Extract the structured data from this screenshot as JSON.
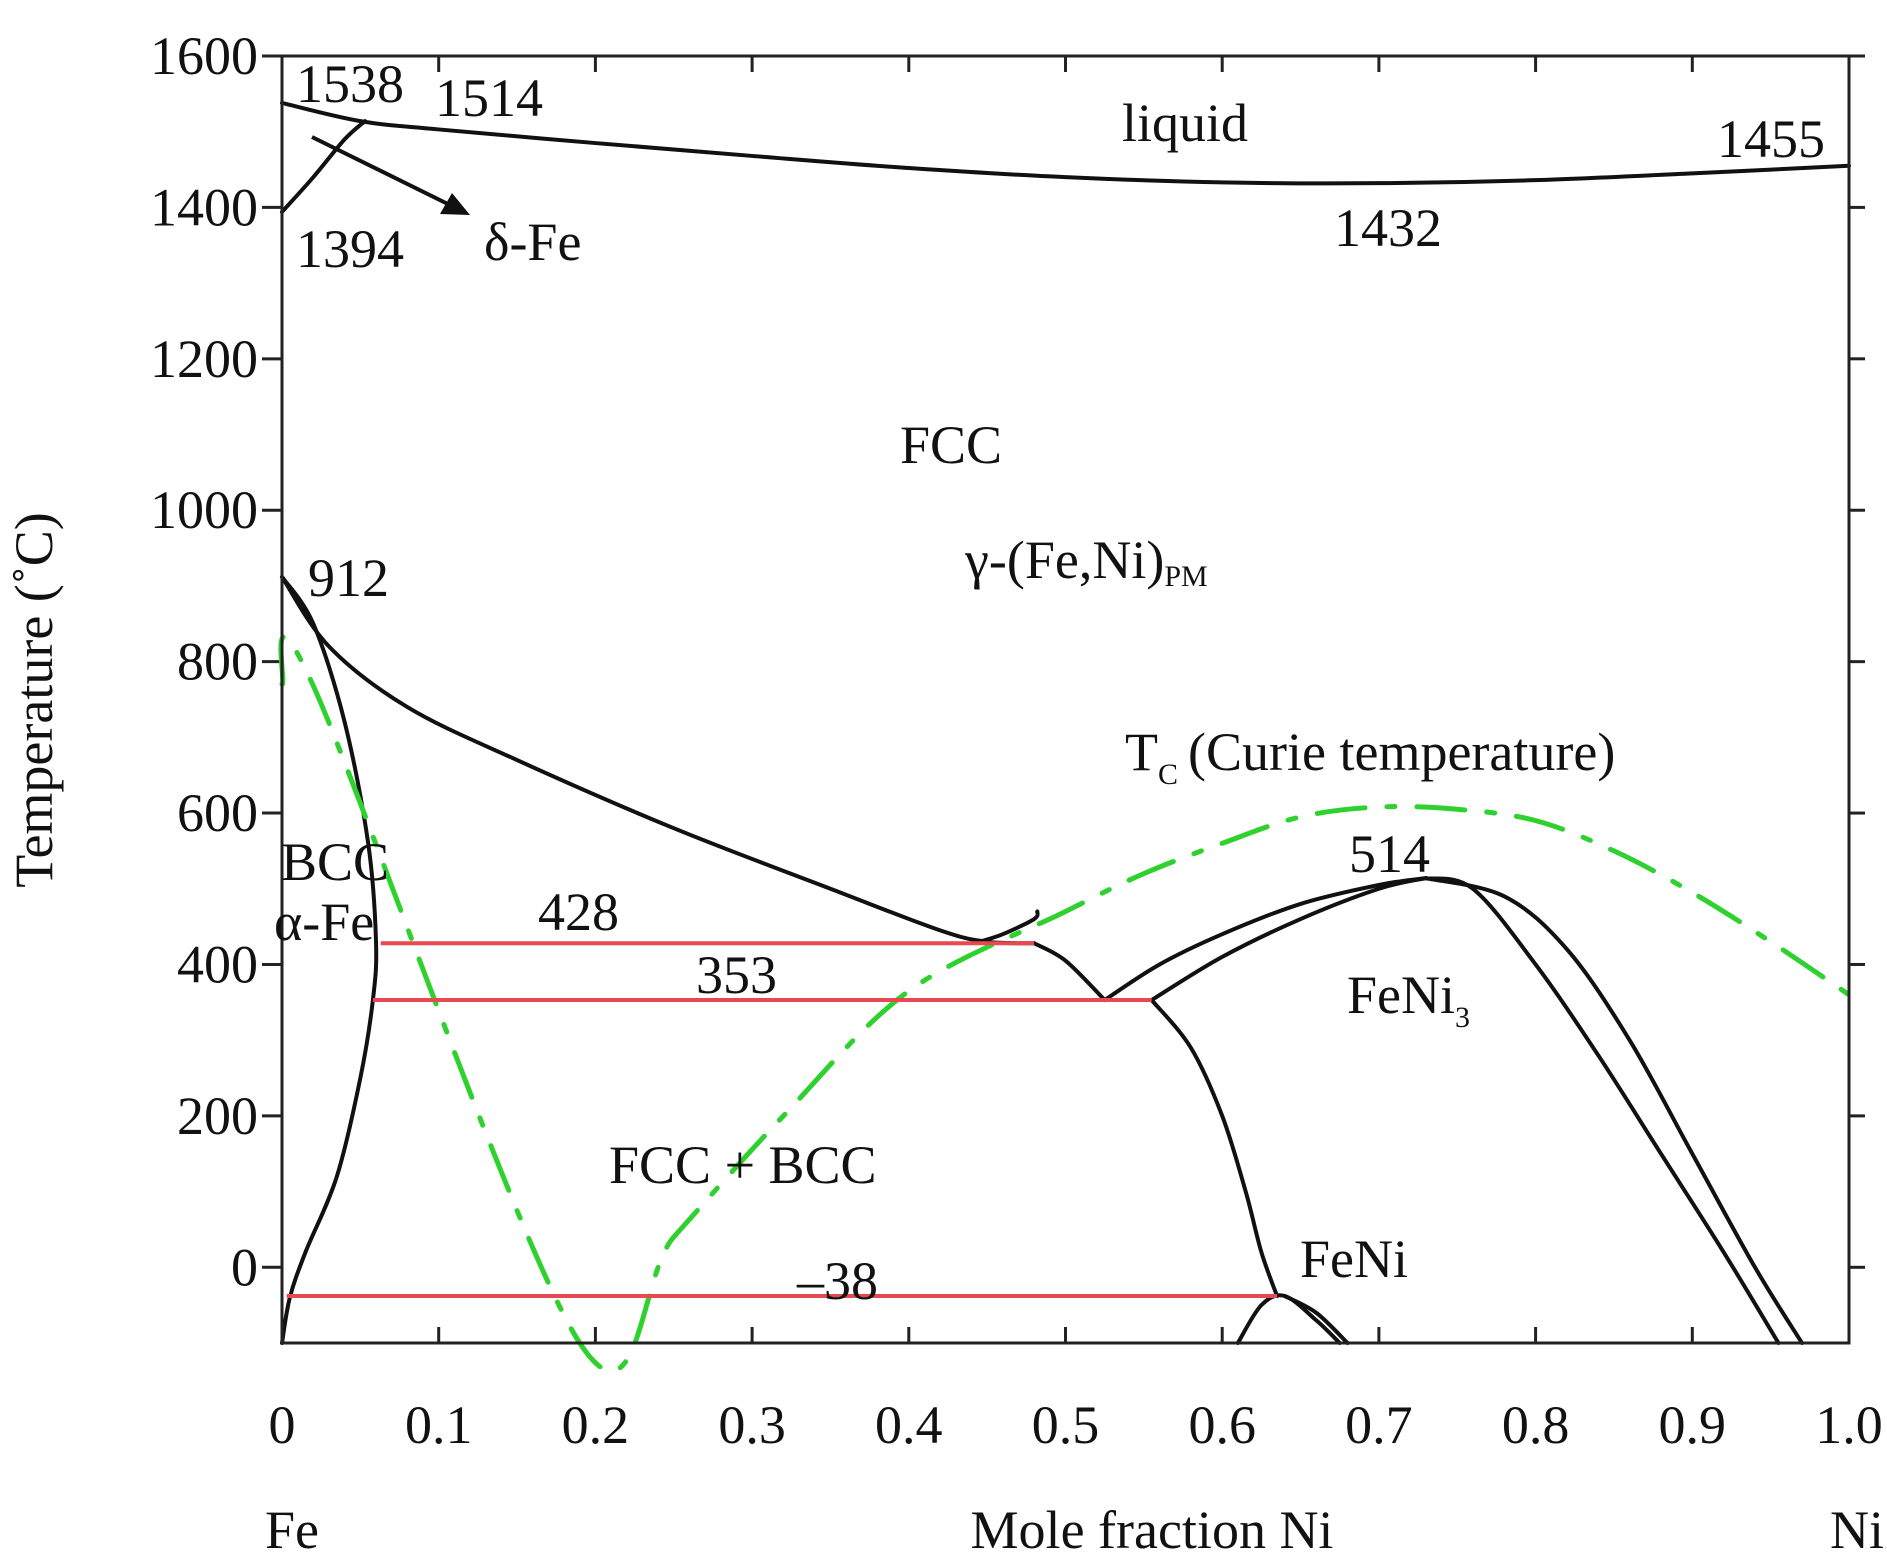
{
  "chart_data": {
    "type": "line",
    "title": "",
    "xlabel": "Mole fraction Ni",
    "ylabel": "Temperature (˚C)",
    "xlim": [
      0,
      1.0
    ],
    "ylim": [
      -100,
      1600
    ],
    "x_ticks": [
      0,
      0.1,
      0.2,
      0.3,
      0.4,
      0.5,
      0.6,
      0.7,
      0.8,
      0.9,
      1.0
    ],
    "x_tick_labels": [
      "0",
      "0.1",
      "0.2",
      "0.3",
      "0.4",
      "0.5",
      "0.6",
      "0.7",
      "0.8",
      "0.9",
      "1.0"
    ],
    "y_ticks": [
      0,
      200,
      400,
      600,
      800,
      1000,
      1200,
      1400,
      1600
    ],
    "y_tick_labels": [
      "0",
      "200",
      "400",
      "600",
      "800",
      "1000",
      "1200",
      "1400",
      "1600"
    ],
    "end_labels": {
      "left": "Fe",
      "right": "Ni"
    },
    "colors": {
      "phase_boundary": "#111111",
      "isotherm": "#e8484f",
      "curie": "#2fd12f"
    },
    "series": [
      {
        "name": "liquidus",
        "color": "#111111",
        "x": [
          0,
          0.05,
          0.1,
          0.2,
          0.3,
          0.4,
          0.5,
          0.6,
          0.7,
          0.8,
          0.9,
          1.0
        ],
        "y": [
          1538,
          1514,
          1503,
          1485,
          1468,
          1452,
          1440,
          1433,
          1432,
          1436,
          1445,
          1455
        ]
      },
      {
        "name": "delta-gamma boundary",
        "color": "#111111",
        "x": [
          0,
          0.02,
          0.04,
          0.053
        ],
        "y": [
          1394,
          1440,
          1490,
          1514
        ]
      },
      {
        "name": "gamma solvus (912 to 428)",
        "color": "#111111",
        "x": [
          0,
          0.03,
          0.08,
          0.15,
          0.25,
          0.35,
          0.42,
          0.45,
          0.48
        ],
        "y": [
          912,
          820,
          740,
          670,
          580,
          500,
          445,
          430,
          428
        ]
      },
      {
        "name": "alpha solvus",
        "color": "#111111",
        "x": [
          0,
          0.02,
          0.04,
          0.055,
          0.06,
          0.058,
          0.05,
          0.035,
          0.015,
          0.005,
          0
        ],
        "y": [
          912,
          850,
          720,
          560,
          430,
          353,
          250,
          120,
          20,
          -40,
          -100
        ]
      },
      {
        "name": "metastable boundary",
        "color": "#111111",
        "x": [
          0.445,
          0.46,
          0.48,
          0.482
        ],
        "y": [
          430,
          440,
          460,
          470
        ]
      },
      {
        "name": "boundary 428 to 353",
        "color": "#111111",
        "x": [
          0.48,
          0.5,
          0.525
        ],
        "y": [
          428,
          405,
          353
        ]
      },
      {
        "name": "FeNi3 left outer",
        "color": "#111111",
        "x": [
          0.525,
          0.56,
          0.6,
          0.65,
          0.7,
          0.73
        ],
        "y": [
          353,
          400,
          440,
          480,
          505,
          514
        ]
      },
      {
        "name": "FeNi3 left inner",
        "color": "#111111",
        "x": [
          0.555,
          0.6,
          0.65,
          0.7,
          0.73
        ],
        "y": [
          353,
          410,
          460,
          500,
          514
        ]
      },
      {
        "name": "boundary below 353",
        "color": "#111111",
        "x": [
          0.555,
          0.58,
          0.6,
          0.615,
          0.625,
          0.635
        ],
        "y": [
          353,
          290,
          200,
          100,
          20,
          -38
        ]
      },
      {
        "name": "FeNi3 right outer",
        "color": "#111111",
        "x": [
          0.73,
          0.78,
          0.82,
          0.86,
          0.9,
          0.94,
          0.97
        ],
        "y": [
          514,
          490,
          420,
          300,
          150,
          0,
          -100
        ]
      },
      {
        "name": "FeNi3 right inner",
        "color": "#111111",
        "x": [
          0.73,
          0.76,
          0.8,
          0.84,
          0.88,
          0.92,
          0.955
        ],
        "y": [
          514,
          500,
          400,
          280,
          150,
          20,
          -100
        ]
      },
      {
        "name": "FeNi dome",
        "color": "#111111",
        "x": [
          0.61,
          0.625,
          0.64,
          0.66,
          0.675
        ],
        "y": [
          -100,
          -50,
          -38,
          -70,
          -100
        ]
      },
      {
        "name": "FeNi lower line",
        "color": "#111111",
        "x": [
          0.64,
          0.66,
          0.68
        ],
        "y": [
          -38,
          -60,
          -100
        ]
      },
      {
        "name": "Tc (Curie temperature)",
        "color": "#2fd12f",
        "dashed": true,
        "x": [
          0,
          0.02,
          0.19,
          0.25,
          0.32,
          0.4,
          0.5,
          0.55,
          0.6,
          0.65,
          0.7,
          0.75,
          0.8,
          0.85,
          0.9,
          0.95,
          1.0
        ],
        "y": [
          770,
          768,
          -100,
          40,
          200,
          365,
          470,
          520,
          560,
          595,
          608,
          605,
          590,
          550,
          495,
          430,
          360
        ]
      }
    ],
    "isotherms": [
      {
        "name": "428 isotherm",
        "y": 428,
        "x": [
          0.063,
          0.48
        ],
        "color": "#e8484f"
      },
      {
        "name": "353 isotherm",
        "y": 353,
        "x": [
          0.058,
          0.555
        ],
        "color": "#e8484f"
      },
      {
        "name": "-38 isotherm",
        "y": -38,
        "x": [
          0.003,
          0.635
        ],
        "color": "#e8484f"
      }
    ],
    "annotations": {
      "t1538": "1538",
      "t1514": "1514",
      "t1394": "1394",
      "delta_fe": "δ-Fe",
      "liquid": "liquid",
      "t1455": "1455",
      "t1432": "1432",
      "fcc": "FCC",
      "gamma_main": "γ-(Fe,Ni)",
      "gamma_sub": "PM",
      "t912": "912",
      "tc_main": "T",
      "tc_sub": "C",
      "tc_rest": "(Curie temperature)",
      "bcc": "BCC",
      "alpha_fe": "α-Fe",
      "t428": "428",
      "t353": "353",
      "t514": "514",
      "feni3_main": "FeNi",
      "feni3_sub": "3",
      "fcc_bcc": "FCC + BCC",
      "t_minus38": "–38",
      "feni": "FeNi"
    }
  }
}
